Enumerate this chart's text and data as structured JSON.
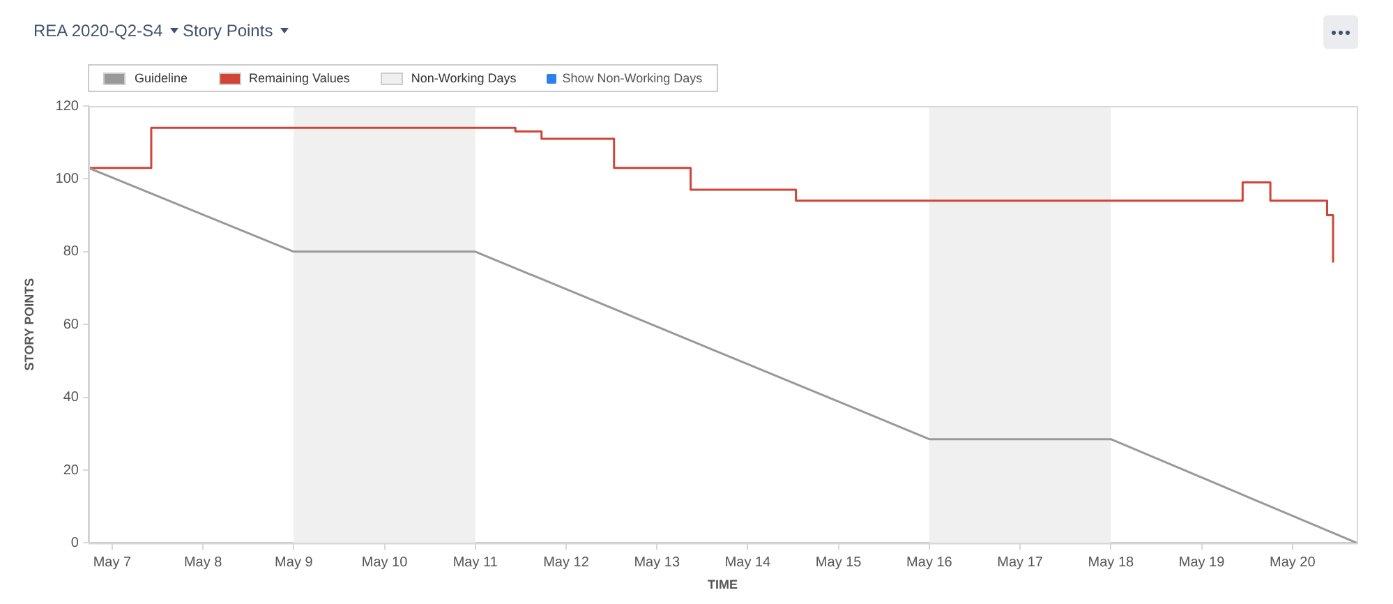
{
  "chart_data": {
    "type": "step",
    "title": "REA 2020-Q2-S4",
    "subtitle": "Story Points",
    "xlabel": "TIME",
    "ylabel": "STORY POINTS",
    "xlim": [
      "--05-06T17:45",
      "--05-20T17:00"
    ],
    "xticks": [
      {
        "value": "--05-07",
        "label": "May 7"
      },
      {
        "value": "--05-08",
        "label": "May 8"
      },
      {
        "value": "--05-09",
        "label": "May 9"
      },
      {
        "value": "--05-10",
        "label": "May 10"
      },
      {
        "value": "--05-11",
        "label": "May 11"
      },
      {
        "value": "--05-12",
        "label": "May 12"
      },
      {
        "value": "--05-13",
        "label": "May 13"
      },
      {
        "value": "--05-14",
        "label": "May 14"
      },
      {
        "value": "--05-15",
        "label": "May 15"
      },
      {
        "value": "--05-16",
        "label": "May 16"
      },
      {
        "value": "--05-17",
        "label": "May 17"
      },
      {
        "value": "--05-18",
        "label": "May 18"
      },
      {
        "value": "--05-19",
        "label": "May 19"
      },
      {
        "value": "--05-20",
        "label": "May 20"
      }
    ],
    "ylim": [
      0,
      120
    ],
    "yticks": [
      0,
      20,
      40,
      60,
      80,
      100,
      120
    ],
    "series": [
      {
        "name": "Guideline",
        "type": "line",
        "color": "#999999",
        "x": [
          "--05-06T17:45",
          "--05-09",
          "--05-11",
          "--05-16",
          "--05-18",
          "--05-20T17:00"
        ],
        "values": [
          103,
          80,
          80,
          28.5,
          28.5,
          0
        ]
      },
      {
        "name": "Remaining Values",
        "type": "step",
        "color": "#d04437",
        "x": [
          "--05-06T17:45",
          "--05-07T10:20",
          "--05-11T10:35",
          "--05-11T17:30",
          "--05-12T12:40",
          "--05-13T08:55",
          "--05-14T12:45",
          "--05-19T10:50",
          "--05-19T18:10",
          "--05-20T09:10",
          "--05-20T10:45"
        ],
        "values": [
          103,
          114,
          113,
          111,
          103,
          97,
          94,
          99,
          94,
          90,
          77
        ]
      }
    ],
    "bands": [
      {
        "axis": "x",
        "from": "--05-09",
        "to": "--05-11",
        "label": "Non-Working Days",
        "color": "#f0f0f0"
      },
      {
        "axis": "x",
        "from": "--05-16",
        "to": "--05-18",
        "color": "#f0f0f0"
      }
    ],
    "annotations": [
      "Show Non-Working Days"
    ],
    "legend": "top",
    "grid": false,
    "marker": "none"
  }
}
